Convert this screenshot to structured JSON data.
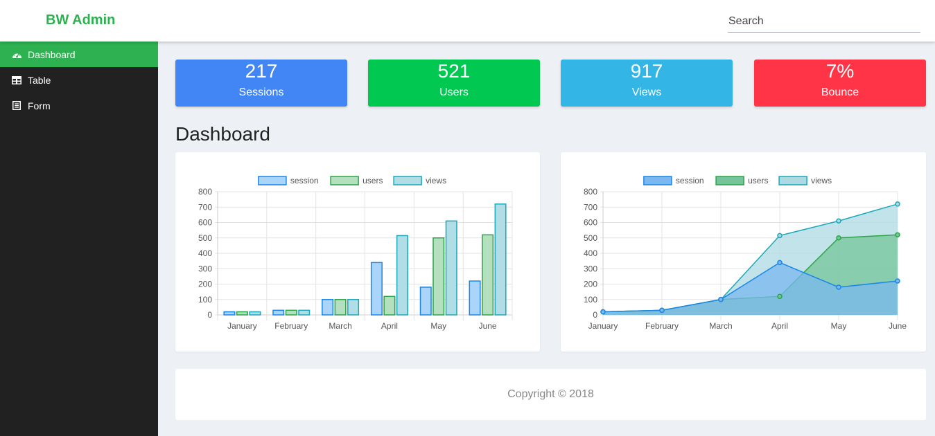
{
  "app": {
    "brand": "BW Admin"
  },
  "search": {
    "placeholder": "Search"
  },
  "sidebar": {
    "items": [
      {
        "label": "Dashboard",
        "icon": "dashboard-icon",
        "active": true
      },
      {
        "label": "Table",
        "icon": "table-icon",
        "active": false
      },
      {
        "label": "Form",
        "icon": "form-icon",
        "active": false
      }
    ]
  },
  "stats": [
    {
      "value": "217",
      "label": "Sessions",
      "color": "#4285f4"
    },
    {
      "value": "521",
      "label": "Users",
      "color": "#00c851"
    },
    {
      "value": "917",
      "label": "Views",
      "color": "#33b5e5"
    },
    {
      "value": "7%",
      "label": "Bounce",
      "color": "#ff3547"
    }
  ],
  "main": {
    "title": "Dashboard"
  },
  "footer": {
    "text": "Copyright © 2018"
  },
  "chart_data": [
    {
      "type": "bar",
      "categories": [
        "January",
        "February",
        "March",
        "April",
        "May",
        "June"
      ],
      "series": [
        {
          "name": "session",
          "values": [
            20,
            30,
            100,
            340,
            180,
            220
          ],
          "fill": "#aad4f9",
          "stroke": "#1a86e8"
        },
        {
          "name": "users",
          "values": [
            20,
            30,
            100,
            120,
            500,
            520
          ],
          "fill": "#b5e0c0",
          "stroke": "#2ca447"
        },
        {
          "name": "views",
          "values": [
            20,
            30,
            100,
            515,
            610,
            720
          ],
          "fill": "#b0dde6",
          "stroke": "#1ba8b8"
        }
      ],
      "ylim": [
        0,
        800
      ],
      "yticks": [
        0,
        100,
        200,
        300,
        400,
        500,
        600,
        700,
        800
      ],
      "grid": true,
      "legend": "top"
    },
    {
      "type": "area",
      "categories": [
        "January",
        "February",
        "March",
        "April",
        "May",
        "June"
      ],
      "series": [
        {
          "name": "session",
          "values": [
            20,
            30,
            100,
            340,
            180,
            220
          ],
          "fill": "#7ab8ef",
          "stroke": "#1a86e8"
        },
        {
          "name": "users",
          "values": [
            20,
            30,
            100,
            120,
            500,
            520
          ],
          "fill": "#74c69a",
          "stroke": "#2ca447"
        },
        {
          "name": "views",
          "values": [
            20,
            30,
            100,
            515,
            610,
            720
          ],
          "fill": "#add9e3",
          "stroke": "#1ba8b8"
        }
      ],
      "ylim": [
        0,
        800
      ],
      "yticks": [
        0,
        100,
        200,
        300,
        400,
        500,
        600,
        700,
        800
      ],
      "grid": true,
      "legend": "top"
    }
  ]
}
